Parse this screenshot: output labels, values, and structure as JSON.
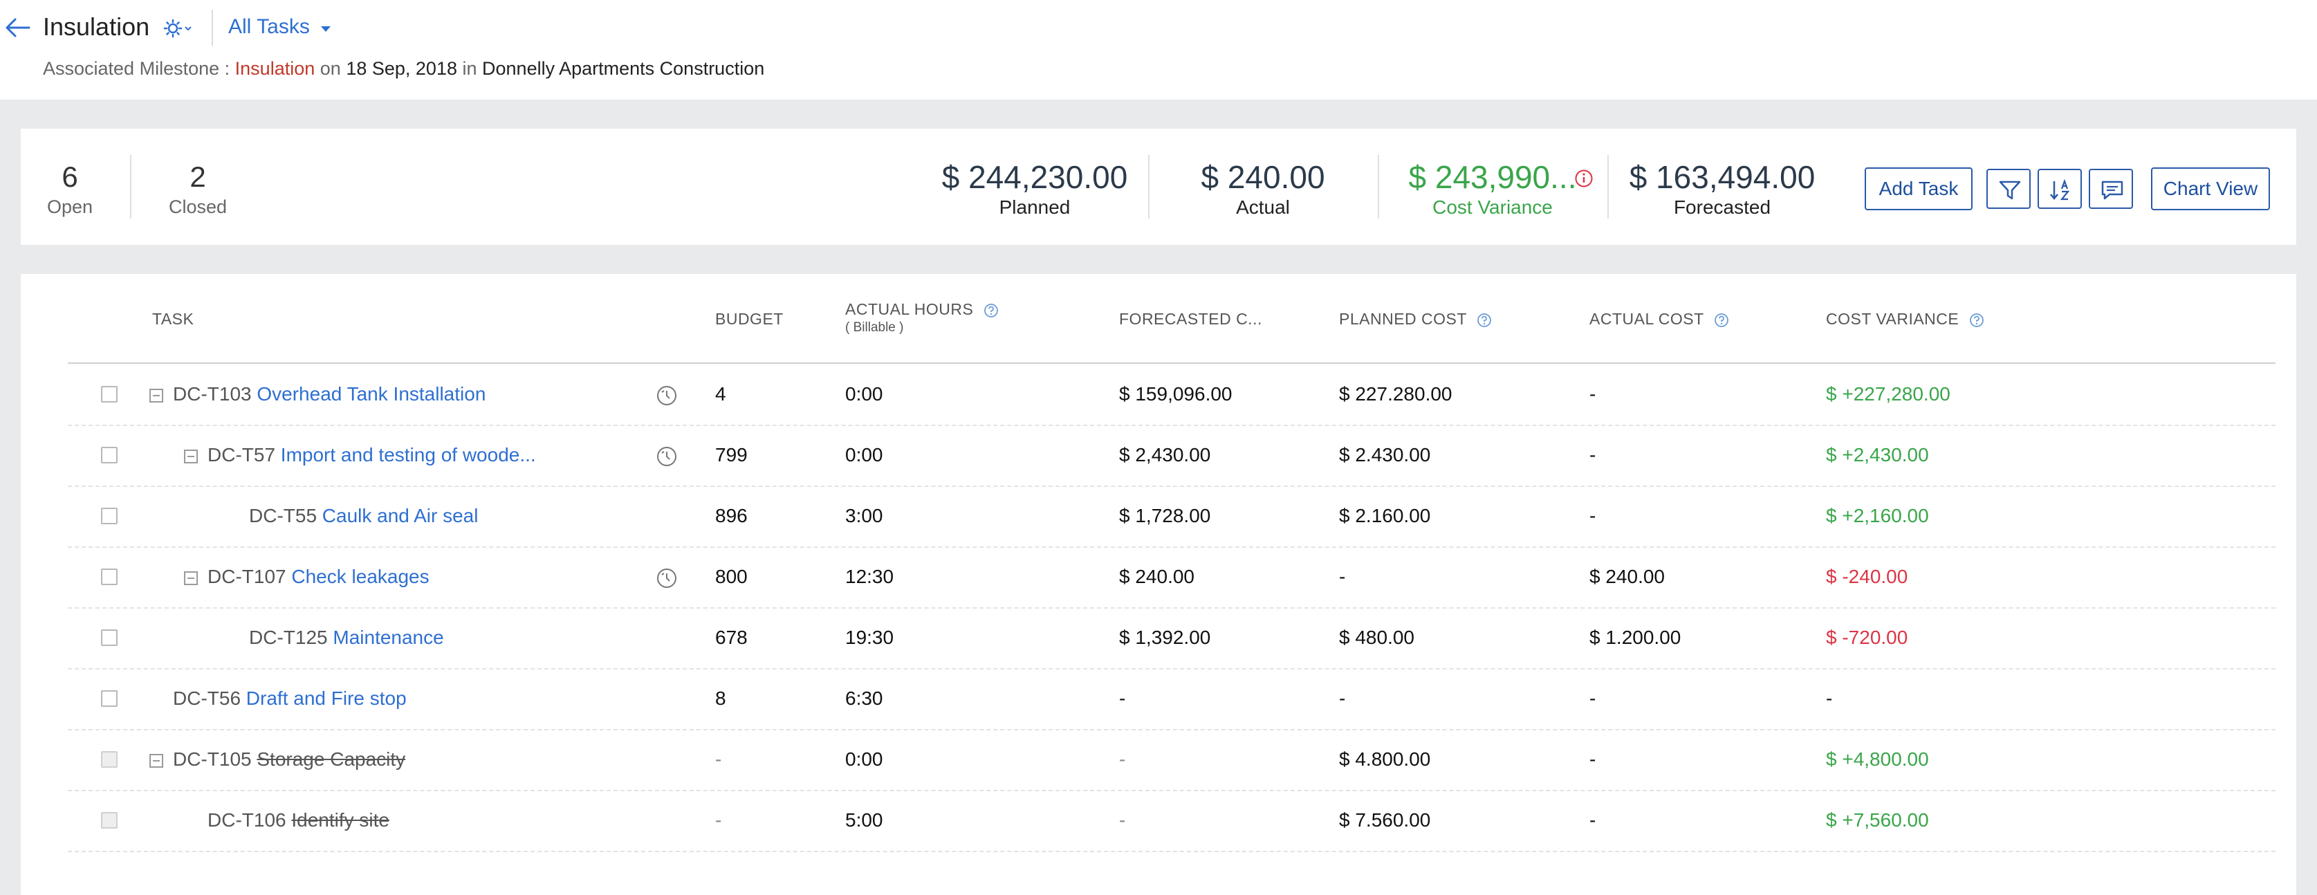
{
  "header": {
    "title": "Insulation",
    "view_selector": "All Tasks",
    "milestone": {
      "label": "Associated Milestone :",
      "name": "Insulation",
      "on_word": "on",
      "date": "18 Sep, 2018",
      "in_word": "in",
      "project": "Donnelly Apartments Construction"
    }
  },
  "summary": {
    "open_count": "6",
    "open_label": "Open",
    "closed_count": "2",
    "closed_label": "Closed",
    "planned_amount": "$ 244,230.00",
    "planned_label": "Planned",
    "actual_amount": "$ 240.00",
    "actual_label": "Actual",
    "variance_amount": "$ 243,990...",
    "variance_label": "Cost Variance",
    "forecasted_amount": "$ 163,494.00",
    "forecasted_label": "Forecasted"
  },
  "toolbar": {
    "add_task_label": "Add Task",
    "chart_view_label": "Chart View"
  },
  "columns": {
    "task": "TASK",
    "budget": "BUDGET",
    "actual_hours": "ACTUAL HOURS",
    "actual_hours_sub": "( Billable )",
    "forecasted": "FORECASTED C...",
    "planned_cost": "PLANNED COST",
    "actual_cost": "ACTUAL COST",
    "cost_variance": "COST VARIANCE"
  },
  "rows": [
    {
      "id": "DC-T103",
      "name": "Overhead Tank Installation",
      "budget": "4",
      "hours": "0:00",
      "forecast": "$ 159,096.00",
      "planned": "$ 227.280.00",
      "actual": "-",
      "variance": "$ +227,280.00"
    },
    {
      "id": "DC-T57",
      "name": "Import and testing of woode...",
      "budget": "799",
      "hours": "0:00",
      "forecast": "$ 2,430.00",
      "planned": "$ 2.430.00",
      "actual": "-",
      "variance": "$ +2,430.00"
    },
    {
      "id": "DC-T55",
      "name": "Caulk and Air seal",
      "budget": "896",
      "hours": "3:00",
      "forecast": "$ 1,728.00",
      "planned": "$ 2.160.00",
      "actual": "-",
      "variance": "$ +2,160.00"
    },
    {
      "id": "DC-T107",
      "name": "Check leakages",
      "budget": "800",
      "hours": "12:30",
      "forecast": "$ 240.00",
      "planned": "-",
      "actual": "$ 240.00",
      "variance": "$ -240.00"
    },
    {
      "id": "DC-T125",
      "name": "Maintenance",
      "budget": "678",
      "hours": "19:30",
      "forecast": "$ 1,392.00",
      "planned": "$ 480.00",
      "actual": "$ 1.200.00",
      "variance": "$ -720.00"
    },
    {
      "id": "DC-T56",
      "name": "Draft and Fire stop",
      "budget": "8",
      "hours": "6:30",
      "forecast": "-",
      "planned": "-",
      "actual": "-",
      "variance": "-"
    },
    {
      "id": "DC-T105",
      "name": "Storage Capacity",
      "budget": "-",
      "hours": "0:00",
      "forecast": "-",
      "planned": "$ 4.800.00",
      "actual": "-",
      "variance": "$ +4,800.00"
    },
    {
      "id": "DC-T106",
      "name": "Identify site",
      "budget": "-",
      "hours": "5:00",
      "forecast": "-",
      "planned": "$ 7.560.00",
      "actual": "-",
      "variance": "$ +7,560.00"
    }
  ],
  "colors": {
    "accent": "#2e6fd1",
    "positive": "#3aa54a",
    "negative": "#dc3545",
    "milestone": "#c0392b"
  }
}
